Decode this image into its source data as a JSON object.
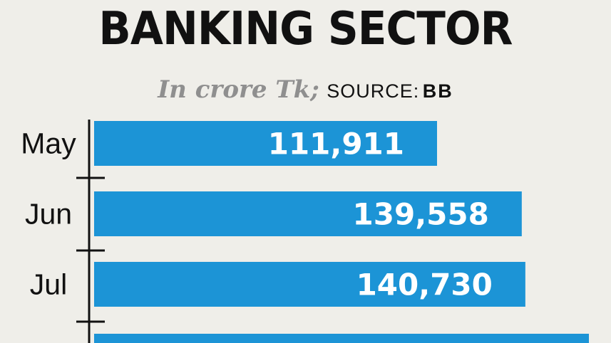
{
  "header": {
    "title": "BANKING SECTOR",
    "unit": "In crore Tk;",
    "source_label": "SOURCE:",
    "source_value": "BB"
  },
  "colors": {
    "bar": "#1c94d6",
    "axis": "#111111",
    "background": "#efeee9"
  },
  "chart_data": {
    "type": "bar",
    "orientation": "horizontal",
    "title": "BANKING SECTOR",
    "subtitle": "In crore Tk; SOURCE: BB",
    "categories": [
      "May",
      "Jun",
      "Jul"
    ],
    "values": [
      111911,
      139558,
      140730
    ],
    "value_labels": [
      "111,911",
      "139,558",
      "140,730"
    ],
    "xlim": [
      0,
      200000
    ],
    "grid": false
  }
}
